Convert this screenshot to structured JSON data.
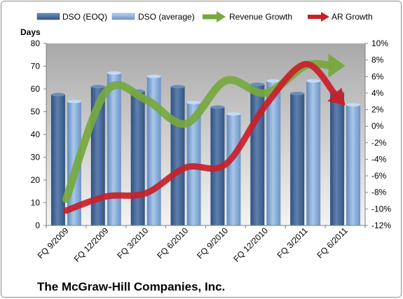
{
  "chart_data": {
    "type": "bar",
    "title": "",
    "caption": "The McGraw-Hill Companies, Inc.",
    "categories": [
      "FQ 9/2009",
      "FQ 12/2009",
      "FQ 3/2010",
      "FQ 6/2010",
      "FQ 9/2010",
      "FQ 12/2010",
      "FQ 3/2011",
      "FQ 6/2011"
    ],
    "ylabel": "Days",
    "ylim": [
      0,
      80
    ],
    "yticks": [
      "0",
      "10",
      "20",
      "30",
      "40",
      "50",
      "60",
      "70",
      "80"
    ],
    "y2lim": [
      -12,
      10
    ],
    "y2ticks": [
      "-12%",
      "-10%",
      "-8%",
      "-6%",
      "-4%",
      "-2%",
      "0%",
      "2%",
      "4%",
      "6%",
      "8%",
      "10%"
    ],
    "legend_position": "top",
    "grid": false,
    "series": [
      {
        "name": "DSO (EOQ)",
        "kind": "bar",
        "axis": "left",
        "color": "#4a6b9a",
        "values": [
          57.5,
          61,
          59,
          61,
          52,
          62,
          58,
          58.5
        ]
      },
      {
        "name": "DSO (average)",
        "kind": "bar",
        "axis": "left",
        "color": "#7fa6d2",
        "values": [
          54.5,
          67,
          65.5,
          54,
          49,
          63.5,
          63.5,
          53
        ]
      },
      {
        "name": "Revenue Growth",
        "kind": "arrow-line",
        "axis": "right",
        "color": "#77a83f",
        "values": [
          -8.8,
          4.2,
          3.2,
          0.3,
          5.5,
          4,
          7.3,
          7.3
        ]
      },
      {
        "name": "AR Growth",
        "kind": "arrow-line",
        "axis": "right",
        "color": "#c8202a",
        "values": [
          -10.2,
          -8.5,
          -8.1,
          -5,
          -4.6,
          2.5,
          7.5,
          2.5
        ]
      }
    ]
  }
}
